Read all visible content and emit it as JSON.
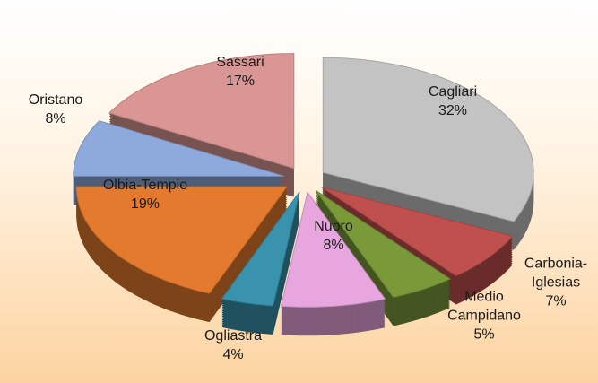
{
  "chart_data": {
    "type": "pie",
    "categories": [
      "Cagliari",
      "Carbonia-Iglesias",
      "Medio Campidano",
      "Nuoro",
      "Ogliastra",
      "Olbia-Tempio",
      "Oristano",
      "Sassari"
    ],
    "values": [
      32,
      7,
      5,
      8,
      4,
      19,
      8,
      17
    ],
    "value_labels": [
      "32%",
      "7%",
      "5%",
      "8%",
      "4%",
      "19%",
      "8%",
      "17%"
    ],
    "colors": [
      "#c3c3c3",
      "#c0504d",
      "#7a9a3a",
      "#e8a6de",
      "#3a93ad",
      "#e47a2e",
      "#8eaadc",
      "#d99694"
    ]
  }
}
